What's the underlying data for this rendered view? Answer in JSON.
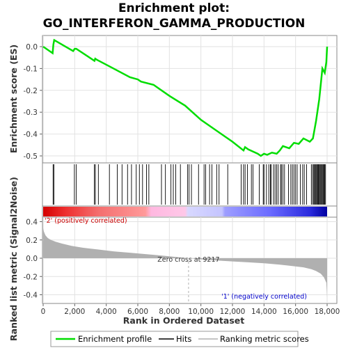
{
  "chart_data": [
    {
      "type": "line",
      "panel": "enrichment",
      "title": "Enrichment plot:\nGO_INTERFERON_GAMMA_PRODUCTION",
      "title_lines": [
        "Enrichment plot:",
        "GO_INTERFERON_GAMMA_PRODUCTION"
      ],
      "ylabel": "Enrichment score (ES)",
      "ylim": [
        -0.53,
        0.04
      ],
      "yticks": [
        0.0,
        -0.1,
        -0.2,
        -0.3,
        -0.4,
        -0.5
      ],
      "ytick_labels": [
        "0.0",
        "-0.1",
        "-0.2",
        "-0.3",
        "-0.4",
        "-0.5"
      ],
      "grid": true,
      "series": [
        {
          "name": "Enrichment profile",
          "color": "#00dd00",
          "x": [
            0,
            600,
            650,
            700,
            1900,
            2000,
            2100,
            3250,
            3300,
            3400,
            4200,
            5500,
            6000,
            6200,
            7000,
            8000,
            9000,
            10000,
            11000,
            12000,
            12700,
            12800,
            13000,
            13600,
            13800,
            14000,
            14200,
            14500,
            14800,
            15000,
            15200,
            15600,
            15900,
            16200,
            16500,
            16900,
            17100,
            17300,
            17500,
            17700,
            17850,
            17950,
            18000
          ],
          "y": [
            0.0,
            -0.03,
            0.01,
            0.03,
            -0.02,
            -0.01,
            -0.01,
            -0.065,
            -0.055,
            -0.06,
            -0.09,
            -0.14,
            -0.15,
            -0.16,
            -0.175,
            -0.225,
            -0.27,
            -0.335,
            -0.385,
            -0.435,
            -0.475,
            -0.46,
            -0.47,
            -0.49,
            -0.5,
            -0.49,
            -0.495,
            -0.485,
            -0.49,
            -0.475,
            -0.455,
            -0.465,
            -0.44,
            -0.445,
            -0.42,
            -0.435,
            -0.42,
            -0.34,
            -0.24,
            -0.1,
            -0.12,
            -0.07,
            0.0
          ]
        }
      ]
    },
    {
      "type": "scatter",
      "panel": "hits",
      "legend_name": "Hits",
      "xlim": [
        0,
        18000
      ],
      "hit_positions": [
        630,
        680,
        1980,
        2100,
        3240,
        3310,
        3500,
        4200,
        4700,
        5000,
        5350,
        5600,
        5900,
        6100,
        6300,
        6550,
        6700,
        7500,
        7750,
        8100,
        8250,
        8400,
        8700,
        9150,
        9250,
        9400,
        9850,
        10200,
        10300,
        10550,
        10700,
        11000,
        11150,
        11700,
        12550,
        12700,
        12800,
        12950,
        13200,
        13300,
        13700,
        13950,
        14000,
        14150,
        14300,
        14400,
        14450,
        14600,
        14700,
        14800,
        14900,
        15050,
        15100,
        15200,
        15300,
        15550,
        15700,
        15800,
        15900,
        16000,
        16100,
        16300,
        16450,
        16550,
        16700,
        17000,
        17080,
        17150,
        17200,
        17250,
        17300,
        17350,
        17400,
        17450,
        17500,
        17550,
        17600,
        17650,
        17700,
        17750,
        17800,
        17850,
        17900
      ]
    },
    {
      "type": "heatmap",
      "panel": "rank_colorbar",
      "xlim": [
        0,
        18000
      ],
      "description_stops": [
        "#d40000",
        "#ff8f8f",
        "#ffc0e0",
        "#d6d6ff",
        "#5a5aff",
        "#0000aa"
      ]
    },
    {
      "type": "area",
      "panel": "ranked_list_metric",
      "ylabel": "Ranked list metric (Signal2Noise)",
      "xlabel": "Rank in Ordered Dataset",
      "xlim": [
        0,
        18000
      ],
      "ylim": [
        -0.45,
        0.45
      ],
      "xticks": [
        0,
        2000,
        4000,
        6000,
        8000,
        10000,
        12000,
        14000,
        16000,
        18000
      ],
      "xtick_labels": [
        "0",
        "2,000",
        "4,000",
        "6,000",
        "8,000",
        "10,000",
        "12,000",
        "14,000",
        "16,000",
        "18,000"
      ],
      "yticks": [
        0.4,
        0.2,
        0.0,
        -0.2,
        -0.4
      ],
      "ytick_labels": [
        "0.4",
        "0.2",
        "0.0",
        "-0.2",
        "-0.4"
      ],
      "x": [
        0,
        50,
        150,
        300,
        500,
        800,
        1200,
        1800,
        2500,
        3500,
        4500,
        5500,
        6500,
        7500,
        8500,
        9217,
        10000,
        11000,
        12000,
        13000,
        14000,
        15000,
        15800,
        16500,
        17000,
        17300,
        17600,
        17800,
        17950,
        18000
      ],
      "values": [
        0.33,
        0.29,
        0.25,
        0.22,
        0.2,
        0.18,
        0.16,
        0.135,
        0.115,
        0.095,
        0.075,
        0.06,
        0.045,
        0.03,
        0.012,
        0.0,
        -0.012,
        -0.025,
        -0.035,
        -0.045,
        -0.055,
        -0.07,
        -0.085,
        -0.1,
        -0.12,
        -0.14,
        -0.17,
        -0.21,
        -0.27,
        -0.43
      ],
      "color": "#b0b0b0",
      "zero_cross_label": "Zero cross at 9217",
      "zero_cross": 9217,
      "pos_label": "'2' (positively correlated)",
      "neg_label": "'1' (negatively correlated)",
      "pos_color": "#cc0000",
      "neg_color": "#0000cc"
    }
  ],
  "legend": {
    "items": [
      {
        "label": "Enrichment profile",
        "color": "#00dd00"
      },
      {
        "label": "Hits",
        "color": "#000000"
      },
      {
        "label": "Ranking metric scores",
        "color": "#b0b0b0"
      }
    ]
  }
}
